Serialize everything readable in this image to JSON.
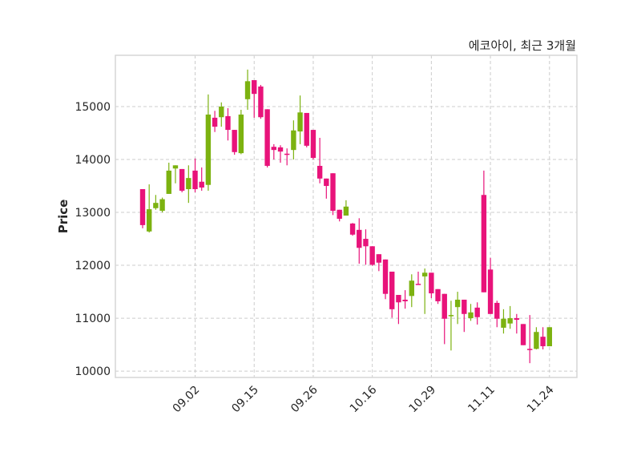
{
  "chart_data": {
    "type": "candlestick",
    "title": "에코아이, 최근 3개월",
    "xlabel": "",
    "ylabel": "Price",
    "ylim": [
      9880,
      15970
    ],
    "yticks": [
      10000,
      11000,
      12000,
      13000,
      14000,
      15000
    ],
    "xtick_labels": [
      {
        "index": 8,
        "label": "09.02"
      },
      {
        "index": 17,
        "label": "09.15"
      },
      {
        "index": 26,
        "label": "09.26"
      },
      {
        "index": 35,
        "label": "10.16"
      },
      {
        "index": 44,
        "label": "10.29"
      },
      {
        "index": 53,
        "label": "11.11"
      },
      {
        "index": 62,
        "label": "11.24"
      }
    ],
    "grid": true,
    "colors": {
      "up": "#7cb210",
      "down": "#e8137a",
      "grid": "#cccccc",
      "frame": "#d6d6d6"
    },
    "ohlc": [
      [
        13440,
        12760,
        13440,
        12700
      ],
      [
        12640,
        13060,
        13530,
        12620
      ],
      [
        13080,
        13180,
        13330,
        13050
      ],
      [
        13030,
        13250,
        13280,
        13000
      ],
      [
        13350,
        13790,
        13940,
        13350
      ],
      [
        13830,
        13890,
        13890,
        13550
      ],
      [
        13820,
        13410,
        13820,
        13380
      ],
      [
        13440,
        13650,
        13890,
        13180
      ],
      [
        13790,
        13440,
        14020,
        13380
      ],
      [
        13580,
        13470,
        13850,
        13410
      ],
      [
        13520,
        14850,
        15230,
        13410
      ],
      [
        14790,
        14620,
        14920,
        14520
      ],
      [
        14800,
        15000,
        15080,
        14620
      ],
      [
        14820,
        14560,
        14970,
        14360
      ],
      [
        14560,
        14140,
        14560,
        14090
      ],
      [
        14120,
        14850,
        14940,
        14100
      ],
      [
        15140,
        15480,
        15700,
        14940
      ],
      [
        15500,
        15240,
        15500,
        14790
      ],
      [
        15380,
        14800,
        15410,
        14770
      ],
      [
        14950,
        13880,
        14950,
        13850
      ],
      [
        14240,
        14180,
        14290,
        14000
      ],
      [
        14230,
        14150,
        14270,
        13940
      ],
      [
        14110,
        14090,
        14210,
        13890
      ],
      [
        14180,
        14550,
        14740,
        14000
      ],
      [
        14530,
        14890,
        15210,
        14290
      ],
      [
        14880,
        14260,
        14880,
        14230
      ],
      [
        14560,
        14030,
        14560,
        14000
      ],
      [
        13880,
        13640,
        14410,
        13550
      ],
      [
        13640,
        13500,
        13640,
        13260
      ],
      [
        13740,
        13030,
        13740,
        12950
      ],
      [
        13050,
        12880,
        13050,
        12830
      ],
      [
        12940,
        13110,
        13230,
        12940
      ],
      [
        12790,
        12580,
        12800,
        12560
      ],
      [
        12670,
        12330,
        12890,
        12030
      ],
      [
        12500,
        12360,
        12680,
        12010
      ],
      [
        12360,
        12010,
        12360,
        11990
      ],
      [
        12210,
        12050,
        12210,
        11890
      ],
      [
        12110,
        11460,
        12110,
        11360
      ],
      [
        11880,
        11170,
        11880,
        11010
      ],
      [
        11440,
        11300,
        11440,
        10890
      ],
      [
        11350,
        11320,
        11530,
        11180
      ],
      [
        11420,
        11710,
        11830,
        11210
      ],
      [
        11650,
        11640,
        11880,
        11640
      ],
      [
        11790,
        11860,
        11940,
        11080
      ],
      [
        11860,
        11470,
        11860,
        11380
      ],
      [
        11550,
        11320,
        11550,
        11270
      ],
      [
        11460,
        10990,
        11460,
        10510
      ],
      [
        11040,
        11060,
        11330,
        10390
      ],
      [
        11210,
        11350,
        11500,
        10890
      ],
      [
        11350,
        11080,
        11350,
        10740
      ],
      [
        11000,
        11110,
        11270,
        10950
      ],
      [
        11200,
        11020,
        11300,
        10880
      ],
      [
        13330,
        11490,
        13790,
        11490
      ],
      [
        11920,
        11080,
        12140,
        11080
      ],
      [
        11290,
        10990,
        11330,
        10830
      ],
      [
        10820,
        10990,
        11170,
        10710
      ],
      [
        10900,
        11000,
        11230,
        10800
      ],
      [
        11000,
        10970,
        11080,
        10710
      ],
      [
        10890,
        10490,
        10890,
        10490
      ],
      [
        10420,
        10410,
        11060,
        10150
      ],
      [
        10420,
        10740,
        10830,
        10410
      ],
      [
        10650,
        10470,
        10830,
        10410
      ],
      [
        10470,
        10830,
        10830,
        10470
      ]
    ]
  }
}
